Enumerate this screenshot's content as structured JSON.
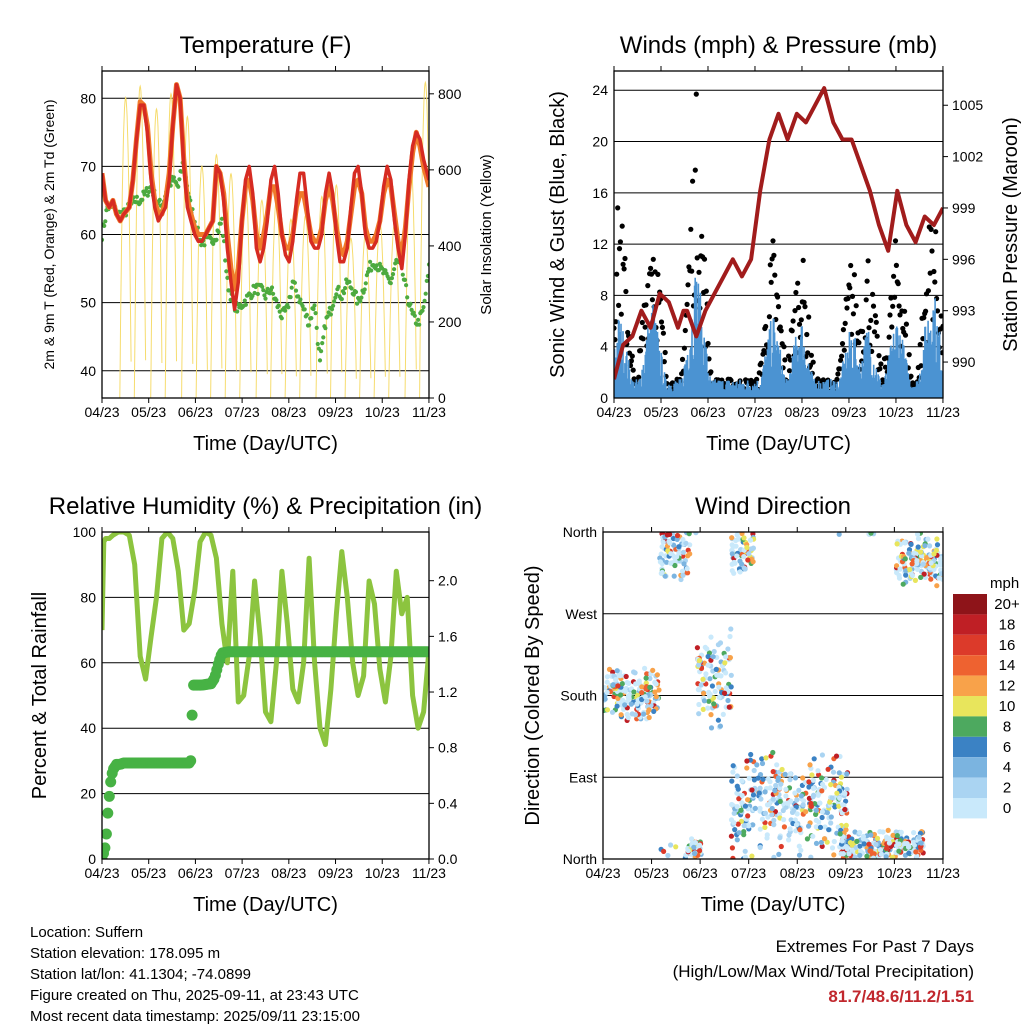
{
  "chart_data": [
    {
      "type": "line",
      "title": "Temperature (F)",
      "xlabel": "Time (Day/UTC)",
      "ylabel": "2m & 9m T (Red, Orange) & 2m Td (Green)",
      "y2label": "Solar Insolation (Yellow)",
      "x_ticks": [
        "04/23",
        "05/23",
        "06/23",
        "07/23",
        "08/23",
        "09/23",
        "10/23",
        "11/23"
      ],
      "y_ticks": [
        "40",
        "50",
        "60",
        "70",
        "80"
      ],
      "y2_ticks": [
        "0",
        "200",
        "400",
        "600",
        "800"
      ],
      "ylim": [
        36,
        84
      ],
      "y2lim": [
        0,
        860
      ],
      "grid": "horizontal",
      "series": [
        {
          "name": "2m T",
          "color": "#d62b22",
          "x": [
            0,
            2,
            4,
            6,
            8,
            10,
            12,
            15,
            17,
            19,
            21,
            23,
            25,
            27,
            29,
            31,
            33,
            35,
            37,
            39,
            41,
            43,
            45,
            47,
            49,
            51,
            53,
            55,
            57,
            59,
            61,
            63,
            65,
            67,
            69,
            71,
            73,
            75,
            77,
            79,
            81,
            83,
            85,
            87,
            89,
            91,
            93,
            95,
            97,
            99,
            101,
            103,
            105,
            107,
            109,
            111,
            113,
            115,
            117,
            119,
            121,
            123,
            125,
            127,
            129,
            131,
            133,
            135,
            137,
            139,
            141,
            143,
            145,
            147,
            149,
            151,
            153,
            155,
            157,
            159,
            161,
            163,
            165,
            167,
            169,
            171,
            173,
            175,
            177,
            180
          ],
          "y": [
            69,
            65,
            64,
            65,
            63,
            62,
            63,
            64,
            68,
            74,
            79,
            79,
            75,
            68,
            64,
            62,
            63,
            64,
            68,
            76,
            82,
            80,
            70,
            64,
            62,
            60,
            59,
            59,
            60,
            61,
            62,
            70,
            69,
            65,
            58,
            53,
            49,
            53,
            62,
            68,
            70,
            66,
            58,
            56,
            58,
            62,
            68,
            70,
            66,
            60,
            57,
            56,
            59,
            65,
            69,
            69,
            64,
            59,
            58,
            58,
            60,
            66,
            69,
            66,
            60,
            56,
            56,
            58,
            64,
            69,
            70,
            66,
            60,
            58,
            58,
            59,
            62,
            67,
            70,
            68,
            62,
            58,
            55,
            60,
            68,
            73,
            75,
            74,
            71,
            68
          ]
        },
        {
          "name": "9m T",
          "color": "#f07a2a",
          "x": [
            0,
            2,
            4,
            6,
            8,
            10,
            12,
            15,
            17,
            19,
            21,
            23,
            25,
            27,
            29,
            31,
            33,
            35,
            37,
            39,
            41,
            43,
            45,
            47,
            49,
            51,
            53,
            55,
            57,
            59,
            61,
            63,
            65,
            67,
            69,
            71,
            73,
            75,
            77,
            79,
            81,
            83,
            85,
            87,
            89,
            91,
            93,
            95,
            97,
            99,
            101,
            103,
            105,
            107,
            109,
            111,
            113,
            115,
            117,
            119,
            121,
            123,
            125,
            127,
            129,
            131,
            133,
            135,
            137,
            139,
            141,
            143,
            145,
            147,
            149,
            151,
            153,
            155,
            157,
            159,
            161,
            163,
            165,
            167,
            169,
            171,
            173,
            175,
            177,
            180
          ],
          "y": [
            69,
            65,
            64,
            65,
            63,
            62,
            63,
            64,
            68,
            74,
            79.5,
            79,
            76,
            69,
            65,
            63,
            63,
            65,
            69,
            76,
            82,
            80,
            71,
            65,
            63,
            61,
            60,
            60,
            60,
            61,
            62,
            70,
            69,
            66,
            60,
            55,
            52,
            55,
            62,
            67,
            68,
            65,
            60,
            58,
            60,
            63,
            67,
            67,
            64,
            60,
            58,
            58,
            60,
            64,
            66,
            66,
            63,
            60,
            59,
            59,
            61,
            65,
            67,
            65,
            61,
            58,
            57,
            59,
            63,
            67,
            68,
            66,
            61,
            59,
            59,
            60,
            62,
            66,
            68,
            67,
            63,
            59,
            57,
            61,
            67,
            72,
            75,
            73,
            70,
            67
          ]
        },
        {
          "name": "2m Td",
          "color": "#4daa3f",
          "x": [
            0,
            3,
            6,
            9,
            12,
            15,
            18,
            21,
            24,
            27,
            30,
            33,
            36,
            39,
            42,
            45,
            48,
            51,
            54,
            57,
            60,
            63,
            66,
            69,
            72,
            75,
            78,
            81,
            84,
            87,
            90,
            93,
            96,
            99,
            102,
            105,
            108,
            111,
            114,
            117,
            120,
            123,
            126,
            129,
            132,
            135,
            138,
            141,
            144,
            147,
            150,
            153,
            156,
            159,
            162,
            165,
            168,
            171,
            174,
            177,
            180
          ],
          "y": [
            60,
            64,
            64,
            63,
            63,
            64,
            65,
            65,
            66,
            67,
            65,
            64,
            67,
            68,
            67,
            71,
            65,
            62,
            59,
            59,
            59,
            60,
            62,
            53,
            50,
            49,
            50,
            51,
            52,
            52,
            51,
            52,
            50,
            48,
            49,
            53,
            51,
            49,
            47,
            50,
            41,
            47,
            49,
            52,
            51,
            53,
            52,
            50,
            52,
            55,
            56,
            55,
            54,
            53,
            56,
            55,
            51,
            48,
            47,
            49,
            55
          ]
        },
        {
          "name": "Solar Insolation",
          "color": "#f6dc6e",
          "axis": "y2",
          "peak_x": [
            13,
            21,
            30,
            38,
            47,
            55,
            63,
            71,
            79,
            88,
            96,
            104,
            112,
            121,
            129,
            137,
            145,
            153,
            161,
            170,
            178
          ],
          "peak_y": [
            790,
            820,
            760,
            800,
            740,
            610,
            640,
            590,
            560,
            520,
            520,
            470,
            480,
            530,
            560,
            420,
            430,
            460,
            460,
            620,
            830
          ]
        }
      ]
    },
    {
      "type": "scatter",
      "title": "Winds (mph) & Pressure (mb)",
      "xlabel": "Time (Day/UTC)",
      "ylabel": "Sonic Wind & Gust (Blue, Black)",
      "y2label": "Station Pressure (Maroon)",
      "x_ticks": [
        "04/23",
        "05/23",
        "06/23",
        "07/23",
        "08/23",
        "09/23",
        "10/23",
        "11/23"
      ],
      "y_ticks": [
        "0",
        "4",
        "8",
        "12",
        "16",
        "20",
        "24"
      ],
      "y2_ticks": [
        "990",
        "993",
        "996",
        "999",
        "1002",
        "1005"
      ],
      "ylim": [
        0,
        25.5
      ],
      "y2lim": [
        987.9,
        1007
      ],
      "grid": "horizontal",
      "series": [
        {
          "name": "Gust",
          "color": "#000000",
          "peak_x": [
            3,
            21,
            45,
            87,
            102,
            130,
            139,
            155,
            174
          ],
          "peak_y": [
            17,
            17,
            24,
            13,
            13,
            12,
            12,
            14,
            17
          ]
        },
        {
          "name": "Wind",
          "color": "#4b93d2",
          "peak_x": [
            3,
            21,
            45,
            87,
            102,
            130,
            139,
            155,
            174
          ],
          "peak_y": [
            7,
            8,
            11,
            7,
            7,
            6,
            6,
            7,
            10
          ]
        },
        {
          "name": "Station Pressure",
          "color": "#a11c1c",
          "x": [
            0,
            5,
            10,
            15,
            20,
            25,
            30,
            35,
            38,
            40,
            45,
            50,
            55,
            60,
            65,
            70,
            75,
            80,
            85,
            90,
            95,
            100,
            105,
            110,
            115,
            120,
            125,
            130,
            135,
            140,
            145,
            150,
            155,
            160,
            165,
            170,
            175,
            180
          ],
          "y": [
            989,
            991,
            991.5,
            993,
            992,
            994,
            993.5,
            992,
            993,
            993,
            991.5,
            993,
            994,
            995,
            996,
            995,
            996,
            1000,
            1003,
            1004.5,
            1003,
            1004.5,
            1004,
            1005,
            1006,
            1004,
            1003,
            1003,
            1001.5,
            1000,
            998,
            996.5,
            1000,
            998,
            997,
            998.5,
            998,
            999
          ]
        }
      ]
    },
    {
      "type": "line",
      "title": "Relative Humidity (%) & Precipitation (in)",
      "xlabel": "Time (Day/UTC)",
      "ylabel": "Percent & Total Rainfall",
      "x_ticks": [
        "04/23",
        "05/23",
        "06/23",
        "07/23",
        "08/23",
        "09/23",
        "10/23",
        "11/23"
      ],
      "y_ticks": [
        "0",
        "20",
        "40",
        "60",
        "80",
        "100"
      ],
      "y2_ticks": [
        "0.0",
        "0.4",
        "0.8",
        "1.2",
        "1.6",
        "2.0"
      ],
      "ylim": [
        0,
        100
      ],
      "y2lim": [
        0,
        2.35
      ],
      "grid": "horizontal",
      "series": [
        {
          "name": "Relative Humidity",
          "color": "#8cc43f",
          "x": [
            0,
            1,
            2,
            4,
            6,
            9,
            12,
            15,
            18,
            21,
            24,
            27,
            30,
            33,
            36,
            39,
            42,
            45,
            48,
            51,
            54,
            57,
            60,
            63,
            66,
            69,
            72,
            75,
            78,
            81,
            84,
            87,
            90,
            93,
            96,
            99,
            102,
            105,
            108,
            111,
            114,
            117,
            120,
            123,
            126,
            129,
            132,
            135,
            138,
            141,
            144,
            147,
            150,
            153,
            156,
            159,
            162,
            165,
            168,
            171,
            174,
            177,
            180
          ],
          "y": [
            70,
            97,
            98,
            98,
            99,
            100,
            100,
            99,
            90,
            62,
            55,
            68,
            80,
            98,
            100,
            98,
            88,
            70,
            72,
            82,
            97,
            100,
            99,
            92,
            72,
            60,
            88,
            48,
            50,
            62,
            85,
            68,
            45,
            42,
            60,
            88,
            72,
            52,
            48,
            60,
            92,
            60,
            40,
            35,
            52,
            75,
            94,
            80,
            60,
            50,
            56,
            85,
            78,
            58,
            48,
            62,
            88,
            75,
            80,
            50,
            40,
            45,
            64
          ]
        },
        {
          "name": "Total Precipitation",
          "color": "#47b244",
          "axis": "y2",
          "x": [
            0,
            2,
            3,
            4,
            5,
            6,
            8,
            10,
            12,
            20,
            30,
            40,
            48,
            49,
            50,
            55,
            60,
            62,
            64,
            66,
            70,
            80,
            100,
            120,
            140,
            160,
            180
          ],
          "y": [
            0,
            0.1,
            0.3,
            0.45,
            0.58,
            0.64,
            0.68,
            0.68,
            0.69,
            0.69,
            0.69,
            0.69,
            0.69,
            0.71,
            1.25,
            1.25,
            1.26,
            1.3,
            1.4,
            1.48,
            1.49,
            1.49,
            1.49,
            1.49,
            1.49,
            1.49,
            1.49
          ]
        }
      ]
    },
    {
      "type": "scatter",
      "title": "Wind Direction",
      "xlabel": "Time (Day/UTC)",
      "ylabel": "Direction (Colored By Speed)",
      "x_ticks": [
        "04/23",
        "05/23",
        "06/23",
        "07/23",
        "08/23",
        "09/23",
        "10/23",
        "11/23"
      ],
      "y_ticks": [
        "North",
        "East",
        "South",
        "West",
        "North"
      ],
      "ylim": [
        0,
        360
      ],
      "grid": "horizontal",
      "legend": {
        "title": "mph",
        "placement": "right",
        "labels": [
          "20+",
          "18",
          "16",
          "14",
          "12",
          "10",
          "8",
          "6",
          "4",
          "2",
          "0"
        ],
        "colors": [
          "#8e1419",
          "#bf1f25",
          "#dc3a2a",
          "#ee6230",
          "#f8a24a",
          "#e8e55c",
          "#4da95f",
          "#3b82c4",
          "#7bb4e0",
          "#aad4f2",
          "#c9e9fb"
        ]
      },
      "clusters": [
        {
          "x_from": 0,
          "x_to": 30,
          "dir_center": 180,
          "dir_spread": 30
        },
        {
          "x_from": 30,
          "x_to": 46,
          "dir_center": 340,
          "dir_spread": 40
        },
        {
          "x_from": 44,
          "x_to": 52,
          "dir_center": 10,
          "dir_spread": 15
        },
        {
          "x_from": 50,
          "x_to": 68,
          "dir_center": 200,
          "dir_spread": 60
        },
        {
          "x_from": 68,
          "x_to": 80,
          "dir_center": 340,
          "dir_spread": 30
        },
        {
          "x_from": 68,
          "x_to": 130,
          "dir_center": 60,
          "dir_spread": 60
        },
        {
          "x_from": 125,
          "x_to": 170,
          "dir_center": 15,
          "dir_spread": 20
        },
        {
          "x_from": 155,
          "x_to": 180,
          "dir_center": 330,
          "dir_spread": 30
        }
      ]
    }
  ],
  "info": {
    "location": "Location: Suffern",
    "elevation": "Station elevation: 178.095 m",
    "latlon": "Station lat/lon: 41.1304; -74.0899",
    "created": "Figure created on Thu, 2025-09-11, at 23:43 UTC",
    "recent": "Most recent data timestamp: 2025/09/11 23:15:00"
  },
  "extremes": {
    "line1": "Extremes For Past 7 Days",
    "line2": "(High/Low/Max Wind/Total Precipitation)",
    "values": "81.7/48.6/11.2/1.51"
  }
}
